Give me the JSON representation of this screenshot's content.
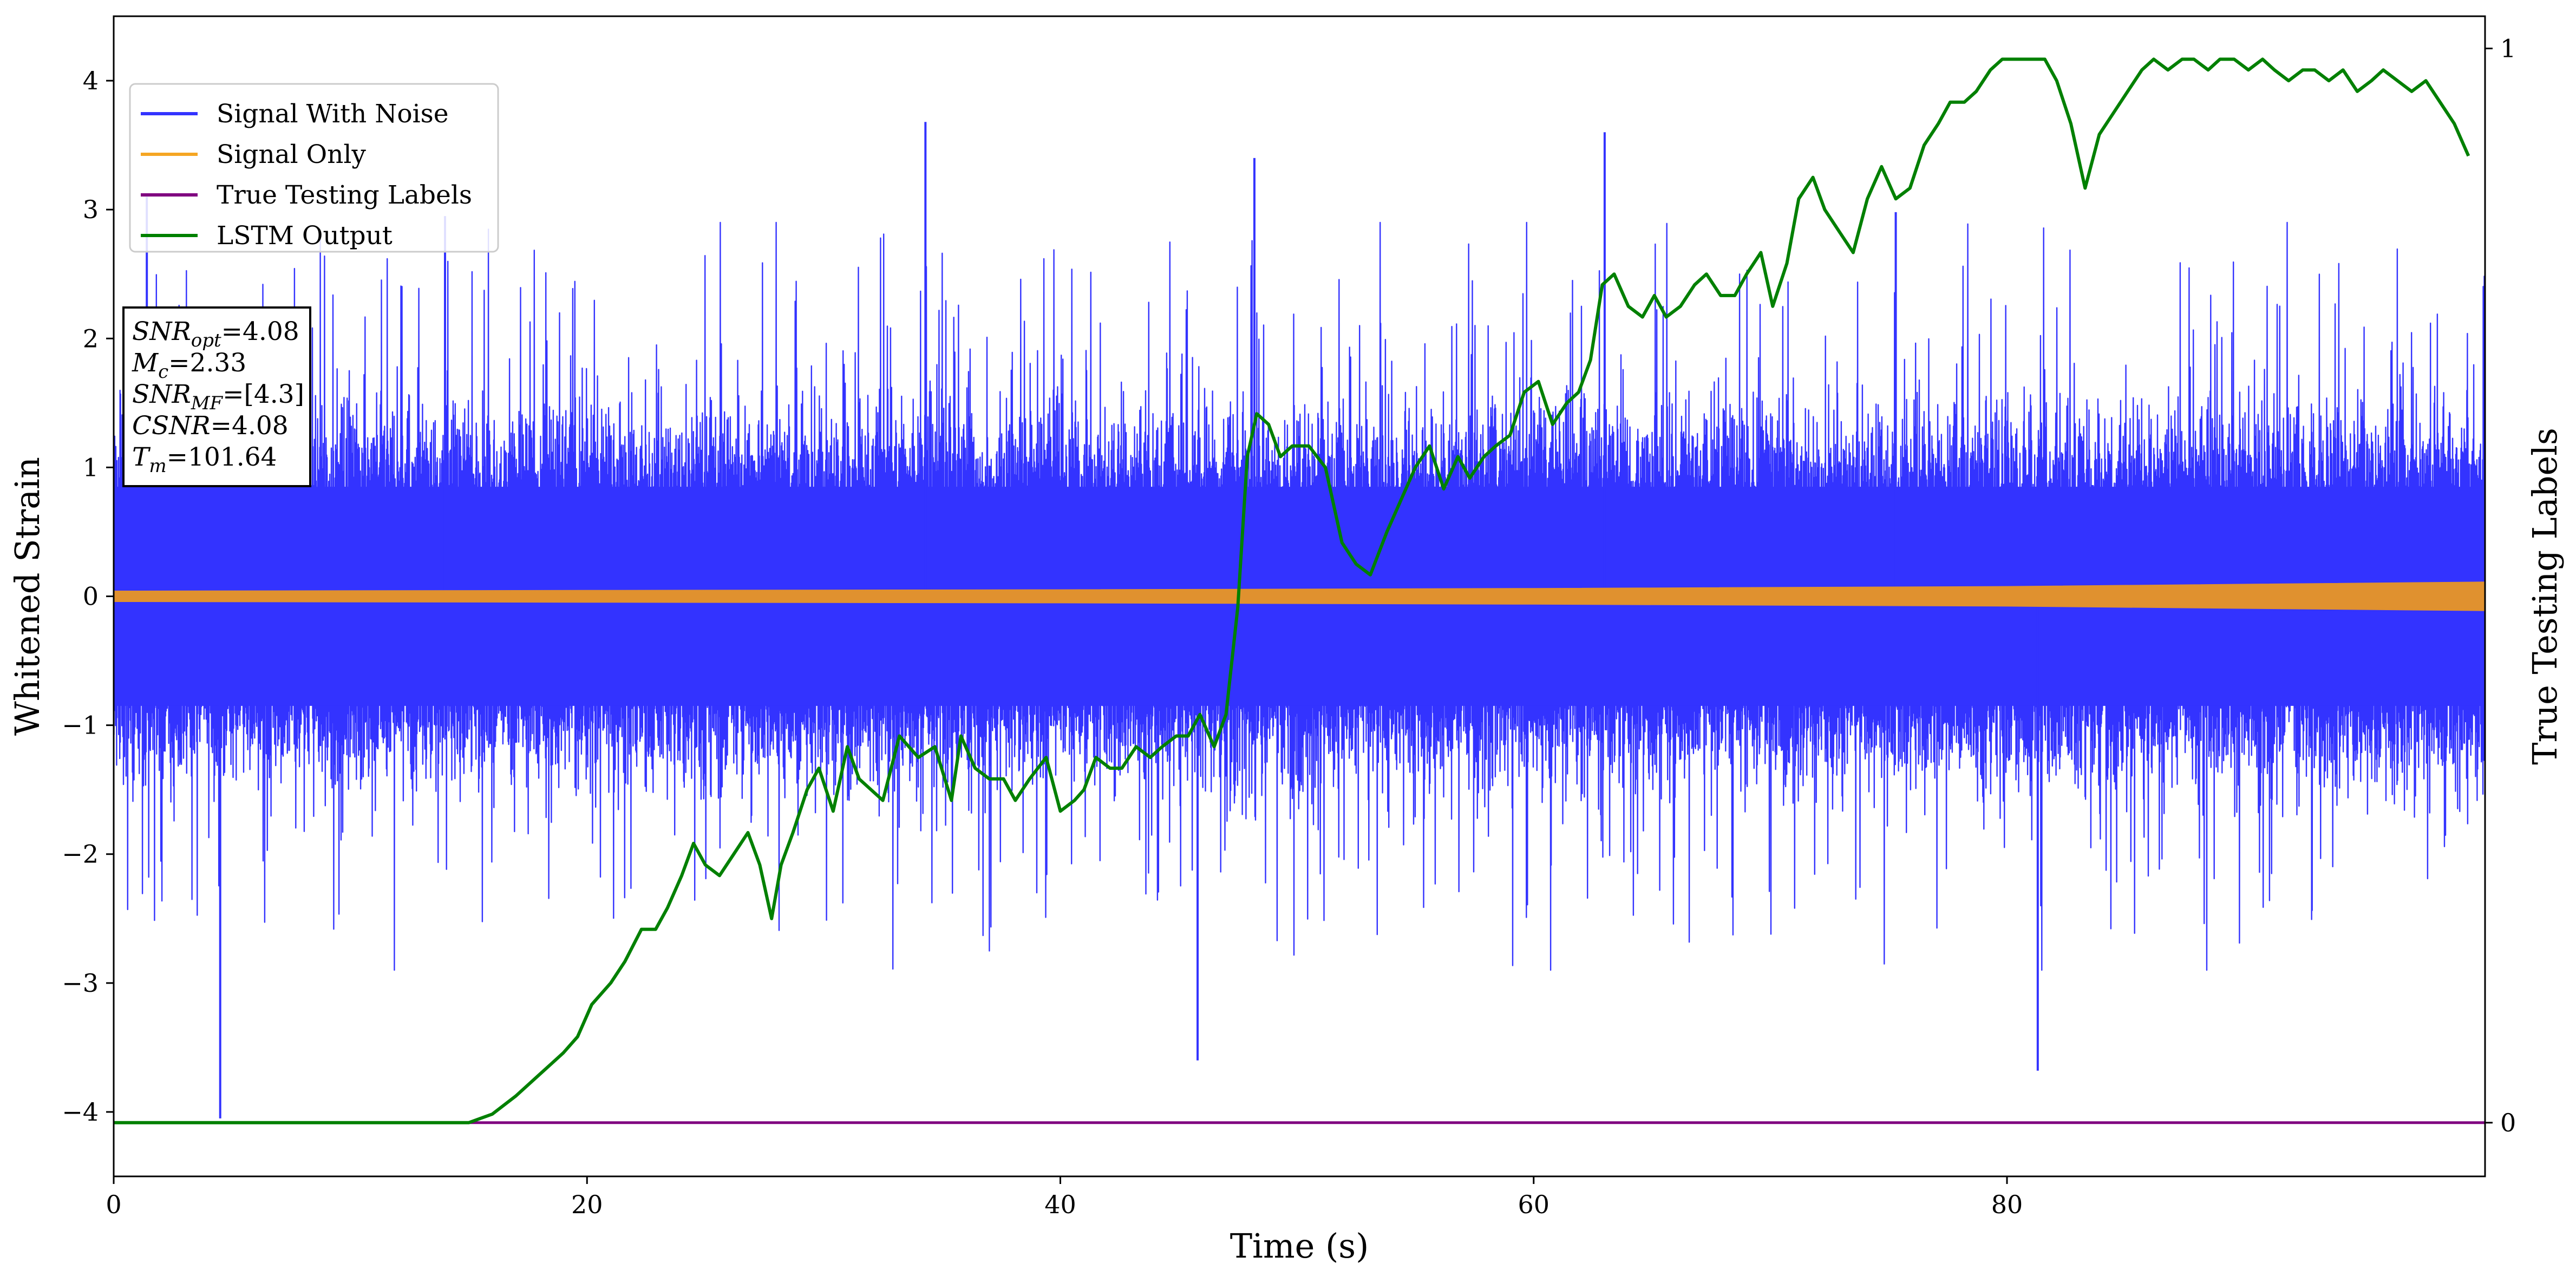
{
  "chart_data": {
    "type": "line",
    "xlabel": "Time (s)",
    "ylabel": "Whitened Strain",
    "y2label": "True Testing Labels",
    "xlim": [
      0,
      100.2
    ],
    "ylim": [
      -4.5,
      4.5
    ],
    "y2lim": [
      -0.05,
      1.03
    ],
    "xticks": [
      0,
      20,
      40,
      60,
      80
    ],
    "xtick_labels": [
      "0",
      "20",
      "40",
      "60",
      "80"
    ],
    "yticks": [
      -4,
      -3,
      -2,
      -1,
      0,
      1,
      2,
      3,
      4
    ],
    "ytick_labels": [
      "−4",
      "−3",
      "−2",
      "−1",
      "0",
      "1",
      "2",
      "3",
      "4"
    ],
    "y2ticks": [
      0,
      1
    ],
    "y2tick_labels": [
      "0",
      "1"
    ],
    "grid": false,
    "legend_position": "upper-left",
    "annotation_lines": [
      {
        "math": "SNR",
        "sub": "opt",
        "rest": "=4.08"
      },
      {
        "math": "M",
        "sub": "c",
        "rest": "=2.33"
      },
      {
        "math": "SNR",
        "sub": "MF",
        "rest": "=[4.3]"
      },
      {
        "math": "CSNR",
        "sub": "",
        "rest": "=4.08"
      },
      {
        "math": "T",
        "sub": "m",
        "rest": "=101.64"
      }
    ],
    "series": [
      {
        "name": "Signal With Noise",
        "color": "#3333ff",
        "axis": "left",
        "kind": "noise",
        "x_range": [
          0,
          100.2
        ],
        "notable_peaks": [
          [
            1.4,
            3.1
          ],
          [
            4.5,
            -4.05
          ],
          [
            14.0,
            2.95
          ],
          [
            34.3,
            3.68
          ],
          [
            45.8,
            -3.6
          ],
          [
            48.2,
            3.4
          ],
          [
            63.0,
            3.6
          ],
          [
            75.3,
            2.98
          ],
          [
            81.3,
            -3.68
          ]
        ]
      },
      {
        "name": "Signal Only",
        "color": "#f5a623",
        "axis": "left",
        "kind": "band",
        "x": [
          0,
          20,
          40,
          60,
          80,
          100.2
        ],
        "amplitude": [
          0.04,
          0.045,
          0.05,
          0.06,
          0.075,
          0.11
        ]
      },
      {
        "name": "True Testing Labels",
        "color": "#800080",
        "axis": "right",
        "x": [
          0,
          100.2
        ],
        "y": [
          0,
          0
        ]
      },
      {
        "name": "LSTM Output",
        "color": "#008000",
        "axis": "right",
        "x": [
          0,
          15,
          16,
          17,
          18,
          18.5,
          19,
          19.6,
          20.2,
          21,
          21.6,
          22.3,
          22.9,
          23.4,
          24,
          24.5,
          25,
          25.6,
          26.2,
          26.8,
          27.3,
          27.8,
          28.2,
          28.7,
          29.3,
          29.8,
          30.4,
          31,
          31.5,
          32,
          32.5,
          33.2,
          34,
          34.7,
          35.4,
          35.8,
          36.4,
          37,
          37.6,
          38.1,
          38.7,
          39.4,
          40,
          40.6,
          41,
          41.5,
          42.1,
          42.6,
          43.2,
          43.8,
          44.3,
          44.9,
          45.4,
          45.9,
          46.5,
          47,
          47.5,
          47.9,
          48.3,
          48.8,
          49.3,
          49.8,
          50.5,
          51.2,
          51.9,
          52.5,
          53.1,
          53.8,
          54.4,
          55,
          55.6,
          56.2,
          56.8,
          57.3,
          57.9,
          58.4,
          59,
          59.6,
          60.2,
          60.8,
          61.4,
          61.9,
          62.4,
          62.9,
          63.4,
          64,
          64.6,
          65.1,
          65.6,
          66.2,
          66.8,
          67.3,
          67.9,
          68.5,
          69,
          69.6,
          70.1,
          70.7,
          71.2,
          71.8,
          72.3,
          72.9,
          73.5,
          74.1,
          74.7,
          75.3,
          75.9,
          76.5,
          77.1,
          77.6,
          78.2,
          78.7,
          79.3,
          79.8,
          80.4,
          81,
          81.6,
          82.1,
          82.7,
          83.3,
          83.9,
          84.5,
          85.1,
          85.7,
          86.2,
          86.8,
          87.4,
          87.9,
          88.5,
          89,
          89.6,
          90.2,
          90.8,
          91.3,
          91.9,
          92.5,
          93,
          93.6,
          94.2,
          94.8,
          95.4,
          95.9,
          96.5,
          97.1,
          97.7,
          98.3,
          98.9,
          99.5
        ],
        "y": [
          0,
          0,
          0.008,
          0.025,
          0.045,
          0.055,
          0.065,
          0.08,
          0.11,
          0.13,
          0.15,
          0.18,
          0.18,
          0.2,
          0.23,
          0.26,
          0.24,
          0.23,
          0.25,
          0.27,
          0.24,
          0.19,
          0.24,
          0.27,
          0.31,
          0.33,
          0.29,
          0.35,
          0.32,
          0.31,
          0.3,
          0.36,
          0.34,
          0.35,
          0.3,
          0.36,
          0.33,
          0.32,
          0.32,
          0.3,
          0.32,
          0.34,
          0.29,
          0.3,
          0.31,
          0.34,
          0.33,
          0.33,
          0.35,
          0.34,
          0.35,
          0.36,
          0.36,
          0.38,
          0.35,
          0.38,
          0.48,
          0.62,
          0.66,
          0.65,
          0.62,
          0.63,
          0.63,
          0.61,
          0.54,
          0.52,
          0.51,
          0.55,
          0.58,
          0.61,
          0.63,
          0.59,
          0.62,
          0.6,
          0.62,
          0.63,
          0.64,
          0.68,
          0.69,
          0.65,
          0.67,
          0.68,
          0.71,
          0.78,
          0.79,
          0.76,
          0.75,
          0.77,
          0.75,
          0.76,
          0.78,
          0.79,
          0.77,
          0.77,
          0.79,
          0.81,
          0.76,
          0.8,
          0.86,
          0.88,
          0.85,
          0.83,
          0.81,
          0.86,
          0.89,
          0.86,
          0.87,
          0.91,
          0.93,
          0.95,
          0.95,
          0.96,
          0.98,
          0.99,
          0.99,
          0.99,
          0.99,
          0.97,
          0.93,
          0.87,
          0.92,
          0.94,
          0.96,
          0.98,
          0.99,
          0.98,
          0.99,
          0.99,
          0.98,
          0.99,
          0.99,
          0.98,
          0.99,
          0.98,
          0.97,
          0.98,
          0.98,
          0.97,
          0.98,
          0.96,
          0.97,
          0.98,
          0.97,
          0.96,
          0.97,
          0.95,
          0.93,
          0.9
        ]
      }
    ]
  }
}
